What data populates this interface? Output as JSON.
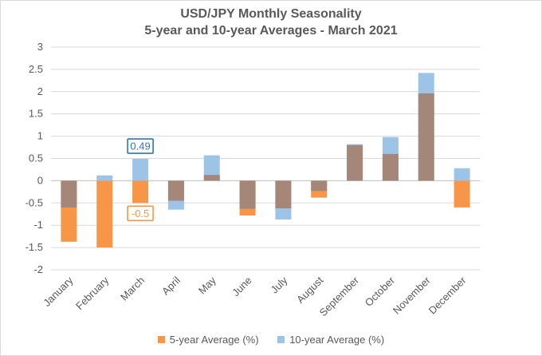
{
  "chart_data": {
    "type": "bar",
    "title": "USD/JPY Monthly Seasonality",
    "subtitle": "5-year and 10-year Averages - March 2021",
    "categories": [
      "January",
      "February",
      "March",
      "April",
      "May",
      "June",
      "July",
      "August",
      "September",
      "October",
      "November",
      "December"
    ],
    "series": [
      {
        "name": "5-year Average (%)",
        "color": "#f79646",
        "values": [
          -1.37,
          -1.5,
          -0.5,
          -0.45,
          0.13,
          -0.78,
          -0.62,
          -0.38,
          0.8,
          0.6,
          1.96,
          -0.6
        ]
      },
      {
        "name": "10-year Average (%)",
        "color": "#9dc3e6",
        "values": [
          -0.6,
          0.12,
          0.49,
          -0.65,
          0.57,
          -0.63,
          -0.87,
          -0.23,
          0.82,
          0.98,
          2.42,
          0.28
        ]
      }
    ],
    "overlap_color": "#a5877a",
    "ylim": [
      -2,
      3
    ],
    "yticks": [
      "-2",
      "-1.5",
      "-1",
      "-0.5",
      "0",
      "0.5",
      "1",
      "1.5",
      "2",
      "2.5",
      "3"
    ],
    "grid": true,
    "legend_position": "bottom",
    "annotations": [
      {
        "text": "0.49",
        "category": "March",
        "value": 0.49,
        "series": "10-year Average (%)",
        "color": "#2e75b6"
      },
      {
        "text": "-0.5",
        "category": "March",
        "value": -0.5,
        "series": "5-year Average (%)",
        "color": "#f79646"
      }
    ]
  }
}
